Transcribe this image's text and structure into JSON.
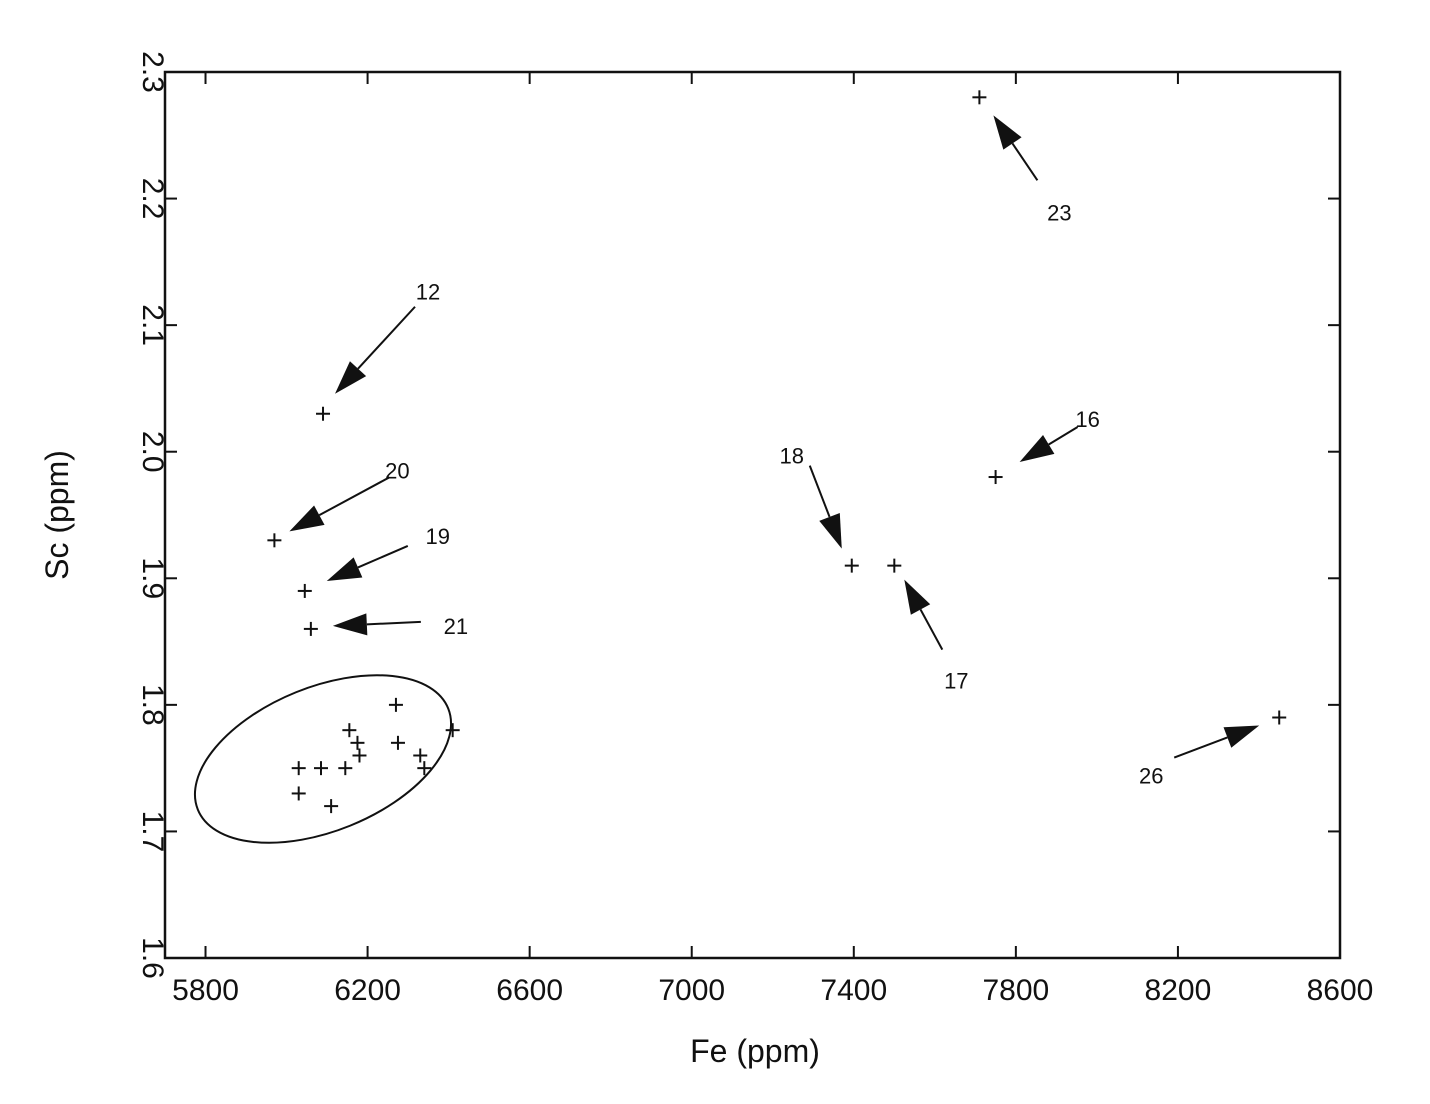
{
  "chart_data": {
    "type": "scatter",
    "title": "",
    "xlabel": "Fe (ppm)",
    "ylabel": "Sc (ppm)",
    "xlim": [
      5700,
      8600
    ],
    "ylim": [
      1.6,
      2.3
    ],
    "xticks": [
      5800,
      6200,
      6600,
      7000,
      7400,
      7800,
      8200,
      8600
    ],
    "xtick_labels": [
      "5800",
      "6200",
      "6600",
      "7000",
      "7400",
      "7800",
      "8200",
      "8600"
    ],
    "yticks": [
      1.6,
      1.7,
      1.8,
      1.9,
      2.0,
      2.1,
      2.2,
      2.3
    ],
    "ytick_labels": [
      "1.6",
      "1.7",
      "1.8",
      "1.9",
      "2.0",
      "2.1",
      "2.2",
      "2.3"
    ],
    "grid": false,
    "marker": "+",
    "series": [
      {
        "points": [
          {
            "x": 6090,
            "y": 2.03,
            "label": "12"
          },
          {
            "x": 5970,
            "y": 1.93,
            "label": "20"
          },
          {
            "x": 6045,
            "y": 1.89,
            "label": "19"
          },
          {
            "x": 6060,
            "y": 1.86,
            "label": "21"
          },
          {
            "x": 7395,
            "y": 1.91,
            "label": "18"
          },
          {
            "x": 7500,
            "y": 1.91,
            "label": "17"
          },
          {
            "x": 7750,
            "y": 1.98,
            "label": "16"
          },
          {
            "x": 7710,
            "y": 2.28,
            "label": "23"
          },
          {
            "x": 8450,
            "y": 1.79,
            "label": "26"
          },
          {
            "x": 6030,
            "y": 1.75
          },
          {
            "x": 6030,
            "y": 1.73
          },
          {
            "x": 6085,
            "y": 1.75
          },
          {
            "x": 6110,
            "y": 1.72
          },
          {
            "x": 6145,
            "y": 1.75
          },
          {
            "x": 6155,
            "y": 1.78
          },
          {
            "x": 6175,
            "y": 1.77
          },
          {
            "x": 6180,
            "y": 1.76
          },
          {
            "x": 6270,
            "y": 1.8
          },
          {
            "x": 6275,
            "y": 1.77
          },
          {
            "x": 6330,
            "y": 1.76
          },
          {
            "x": 6340,
            "y": 1.75
          },
          {
            "x": 6410,
            "y": 1.78
          }
        ]
      }
    ]
  }
}
